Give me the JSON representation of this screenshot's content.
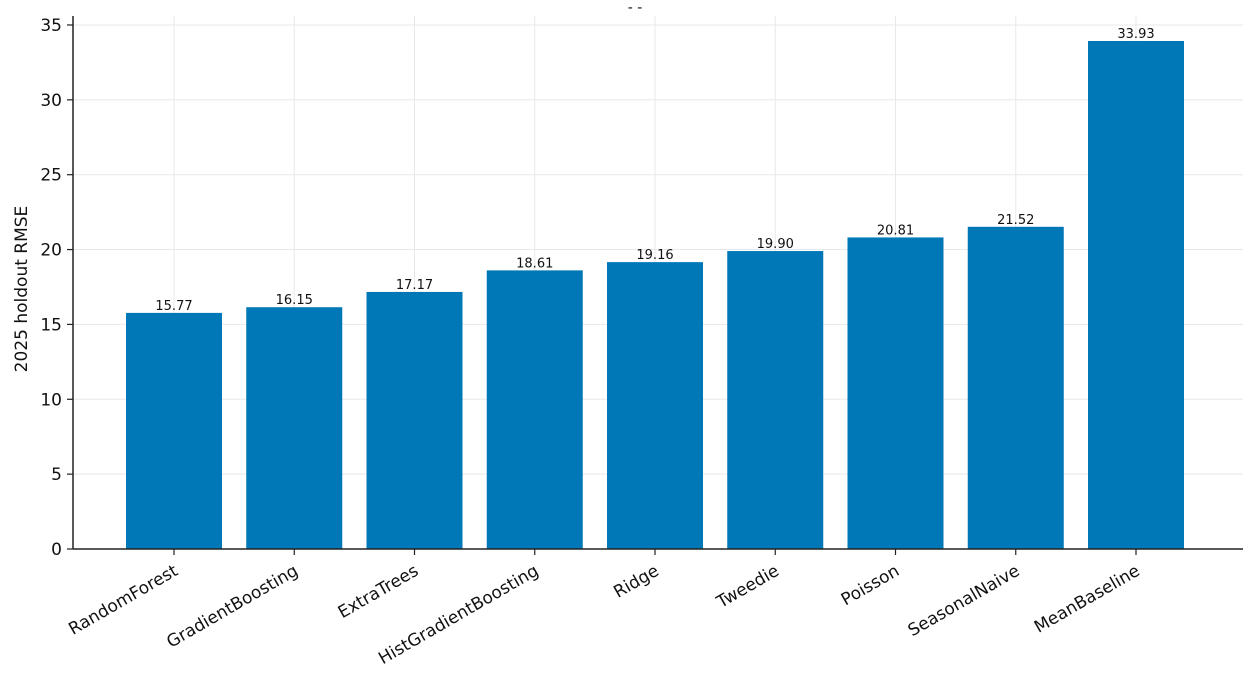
{
  "chart_data": {
    "type": "bar",
    "title": "- -",
    "xlabel": "",
    "ylabel": "2025 holdout RMSE",
    "categories": [
      "RandomForest",
      "GradientBoosting",
      "ExtraTrees",
      "HistGradientBoosting",
      "Ridge",
      "Tweedie",
      "Poisson",
      "SeasonalNaive",
      "MeanBaseline"
    ],
    "values": [
      15.77,
      16.15,
      17.17,
      18.61,
      19.16,
      19.9,
      20.81,
      21.52,
      33.93
    ],
    "value_labels": [
      "15.77",
      "16.15",
      "17.17",
      "18.61",
      "19.16",
      "19.90",
      "20.81",
      "21.52",
      "33.93"
    ],
    "yticks": [
      0,
      5,
      10,
      15,
      20,
      25,
      30,
      35
    ],
    "ylim": [
      0,
      35.6
    ],
    "grid": true,
    "legend": "none",
    "colors": {
      "bar": "#0077b6",
      "grid": "#e8e8e8",
      "axis": "#222222"
    }
  }
}
